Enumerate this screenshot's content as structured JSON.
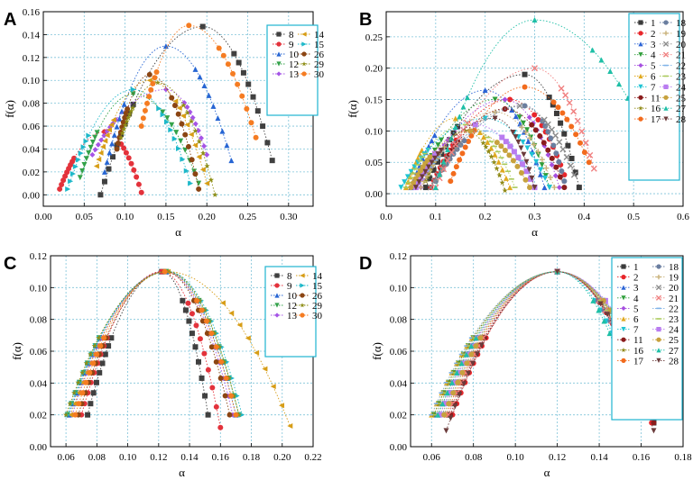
{
  "series_colors": {
    "1": "#3a3a3a",
    "2": "#e8262b",
    "3": "#2a63d6",
    "4": "#2f9e3a",
    "5": "#a64fe0",
    "6": "#e0a91f",
    "7": "#1fc4d4",
    "8": "#404040",
    "9": "#e3323b",
    "10": "#2665d3",
    "11": "#8a1c1c",
    "12": "#33a24a",
    "13": "#a554e6",
    "14": "#d79d16",
    "15": "#1db8c9",
    "16": "#8f8a17",
    "17": "#f26b1d",
    "18": "#6a7ea0",
    "19": "#c9b27a",
    "20": "#8c8c8c",
    "21": "#f08080",
    "22": "#7fb3e8",
    "23": "#a9c95a",
    "24": "#b97cf0",
    "25": "#c7a23e",
    "26": "#8b4513",
    "27": "#1ebfa6",
    "28": "#6b3b3b",
    "29": "#8e8e16",
    "30": "#f57c22"
  },
  "chart_data": [
    {
      "panel": "A",
      "type": "scatter",
      "xlabel": "α",
      "ylabel": "f(α)",
      "xlim": [
        0.0,
        0.33
      ],
      "ylim": [
        -0.01,
        0.16
      ],
      "xticks": [
        "0.00",
        "0.05",
        "0.10",
        "0.15",
        "0.20",
        "0.25",
        "0.30"
      ],
      "yticks": [
        "0.00",
        "0.02",
        "0.04",
        "0.06",
        "0.08",
        "0.10",
        "0.12",
        "0.14",
        "0.16"
      ],
      "legend_columns": [
        [
          "8",
          "9",
          "10",
          "12",
          "13"
        ],
        [
          "14",
          "15",
          "26",
          "29",
          "30"
        ]
      ],
      "series": [
        {
          "name": "8",
          "alpha_min": 0.07,
          "alpha_0": 0.195,
          "alpha_max": 0.28,
          "f_max": 0.147,
          "f_left_end": 0.0,
          "f_right_end": 0.03
        },
        {
          "name": "9",
          "alpha_min": 0.02,
          "alpha_0": 0.075,
          "alpha_max": 0.12,
          "f_max": 0.055,
          "f_left_end": 0.005,
          "f_right_end": 0.002
        },
        {
          "name": "10",
          "alpha_min": 0.075,
          "alpha_0": 0.15,
          "alpha_max": 0.23,
          "f_max": 0.13,
          "f_left_end": 0.02,
          "f_right_end": 0.03
        },
        {
          "name": "12",
          "alpha_min": 0.045,
          "alpha_0": 0.11,
          "alpha_max": 0.19,
          "f_max": 0.088,
          "f_left_end": 0.015,
          "f_right_end": 0.01
        },
        {
          "name": "13",
          "alpha_min": 0.06,
          "alpha_0": 0.15,
          "alpha_max": 0.2,
          "f_max": 0.092,
          "f_left_end": 0.035,
          "f_right_end": 0.035
        },
        {
          "name": "14",
          "alpha_min": 0.065,
          "alpha_0": 0.13,
          "alpha_max": 0.2,
          "f_max": 0.1,
          "f_left_end": 0.025,
          "f_right_end": 0.01
        },
        {
          "name": "15",
          "alpha_min": 0.03,
          "alpha_0": 0.11,
          "alpha_max": 0.18,
          "f_max": 0.092,
          "f_left_end": 0.005,
          "f_right_end": 0.01
        },
        {
          "name": "26",
          "alpha_min": 0.09,
          "alpha_0": 0.13,
          "alpha_max": 0.19,
          "f_max": 0.105,
          "f_left_end": 0.04,
          "f_right_end": 0.005
        },
        {
          "name": "29",
          "alpha_min": 0.095,
          "alpha_0": 0.14,
          "alpha_max": 0.21,
          "f_max": 0.098,
          "f_left_end": 0.05,
          "f_right_end": 0.0
        },
        {
          "name": "30",
          "alpha_min": 0.12,
          "alpha_0": 0.178,
          "alpha_max": 0.26,
          "f_max": 0.148,
          "f_left_end": 0.06,
          "f_right_end": 0.05
        }
      ]
    },
    {
      "panel": "B",
      "type": "scatter",
      "xlabel": "α",
      "ylabel": "f(α)",
      "xlim": [
        0.0,
        0.6
      ],
      "ylim": [
        -0.02,
        0.29
      ],
      "xticks": [
        "0.0",
        "0.1",
        "0.2",
        "0.3",
        "0.4",
        "0.5",
        "0.6"
      ],
      "yticks": [
        "0.00",
        "0.05",
        "0.10",
        "0.15",
        "0.20",
        "0.25"
      ],
      "legend_columns": [
        [
          "1",
          "2",
          "3",
          "4",
          "5",
          "6",
          "7",
          "11",
          "16",
          "17"
        ],
        [
          "18",
          "19",
          "20",
          "21",
          "22",
          "23",
          "24",
          "25",
          "27",
          "28"
        ]
      ],
      "series": [
        {
          "name": "1",
          "alpha_min": 0.08,
          "alpha_0": 0.28,
          "alpha_max": 0.39,
          "f_max": 0.19,
          "f_left_end": 0.01,
          "f_right_end": 0.01
        },
        {
          "name": "2",
          "alpha_min": 0.09,
          "alpha_0": 0.25,
          "alpha_max": 0.36,
          "f_max": 0.15,
          "f_left_end": 0.01,
          "f_right_end": 0.03
        },
        {
          "name": "3",
          "alpha_min": 0.05,
          "alpha_0": 0.2,
          "alpha_max": 0.32,
          "f_max": 0.165,
          "f_left_end": 0.01,
          "f_right_end": 0.01
        },
        {
          "name": "4",
          "alpha_min": 0.06,
          "alpha_0": 0.22,
          "alpha_max": 0.33,
          "f_max": 0.15,
          "f_left_end": 0.01,
          "f_right_end": 0.01
        },
        {
          "name": "5",
          "alpha_min": 0.07,
          "alpha_0": 0.24,
          "alpha_max": 0.35,
          "f_max": 0.15,
          "f_left_end": 0.01,
          "f_right_end": 0.01
        },
        {
          "name": "6",
          "alpha_min": 0.04,
          "alpha_0": 0.14,
          "alpha_max": 0.25,
          "f_max": 0.12,
          "f_left_end": 0.01,
          "f_right_end": 0.01
        },
        {
          "name": "7",
          "alpha_min": 0.03,
          "alpha_0": 0.2,
          "alpha_max": 0.33,
          "f_max": 0.12,
          "f_left_end": 0.01,
          "f_right_end": 0.01
        },
        {
          "name": "11",
          "alpha_min": 0.1,
          "alpha_0": 0.24,
          "alpha_max": 0.36,
          "f_max": 0.135,
          "f_left_end": 0.02,
          "f_right_end": 0.01
        },
        {
          "name": "16",
          "alpha_min": 0.08,
          "alpha_0": 0.16,
          "alpha_max": 0.24,
          "f_max": 0.1,
          "f_left_end": 0.02,
          "f_right_end": 0.005
        },
        {
          "name": "17",
          "alpha_min": 0.13,
          "alpha_0": 0.28,
          "alpha_max": 0.41,
          "f_max": 0.17,
          "f_left_end": 0.02,
          "f_right_end": 0.05
        },
        {
          "name": "18",
          "alpha_min": 0.1,
          "alpha_0": 0.28,
          "alpha_max": 0.36,
          "f_max": 0.14,
          "f_left_end": 0.02,
          "f_right_end": 0.02
        },
        {
          "name": "19",
          "alpha_min": 0.07,
          "alpha_0": 0.22,
          "alpha_max": 0.34,
          "f_max": 0.13,
          "f_left_end": 0.01,
          "f_right_end": 0.01
        },
        {
          "name": "20",
          "alpha_min": 0.09,
          "alpha_0": 0.27,
          "alpha_max": 0.38,
          "f_max": 0.14,
          "f_left_end": 0.01,
          "f_right_end": 0.03
        },
        {
          "name": "21",
          "alpha_min": 0.1,
          "alpha_0": 0.3,
          "alpha_max": 0.42,
          "f_max": 0.2,
          "f_left_end": 0.01,
          "f_right_end": 0.04
        },
        {
          "name": "22",
          "alpha_min": 0.06,
          "alpha_0": 0.2,
          "alpha_max": 0.3,
          "f_max": 0.1,
          "f_left_end": 0.01,
          "f_right_end": 0.01
        },
        {
          "name": "23",
          "alpha_min": 0.04,
          "alpha_0": 0.16,
          "alpha_max": 0.26,
          "f_max": 0.11,
          "f_left_end": 0.01,
          "f_right_end": 0.01
        },
        {
          "name": "24",
          "alpha_min": 0.06,
          "alpha_0": 0.18,
          "alpha_max": 0.3,
          "f_max": 0.11,
          "f_left_end": 0.01,
          "f_right_end": 0.01
        },
        {
          "name": "25",
          "alpha_min": 0.05,
          "alpha_0": 0.17,
          "alpha_max": 0.29,
          "f_max": 0.1,
          "f_left_end": 0.01,
          "f_right_end": 0.01
        },
        {
          "name": "27",
          "alpha_min": 0.1,
          "alpha_0": 0.3,
          "alpha_max": 0.56,
          "f_max": 0.277,
          "f_left_end": 0.01,
          "f_right_end": 0.04
        },
        {
          "name": "28",
          "alpha_min": 0.06,
          "alpha_0": 0.22,
          "alpha_max": 0.3,
          "f_max": 0.12,
          "f_left_end": 0.01,
          "f_right_end": 0.01
        }
      ]
    },
    {
      "panel": "C",
      "type": "scatter",
      "xlabel": "α",
      "ylabel": "f(α)",
      "xlim": [
        0.05,
        0.22
      ],
      "ylim": [
        0.0,
        0.12
      ],
      "xticks": [
        "0.06",
        "0.08",
        "0.10",
        "0.12",
        "0.14",
        "0.16",
        "0.18",
        "0.20",
        "0.22"
      ],
      "yticks": [
        "0.00",
        "0.02",
        "0.04",
        "0.06",
        "0.08",
        "0.10",
        "0.12"
      ],
      "legend_columns": [
        [
          "8",
          "9",
          "10",
          "12",
          "13"
        ],
        [
          "14",
          "15",
          "26",
          "29",
          "30"
        ]
      ],
      "series": [
        {
          "name": "8",
          "alpha_min": 0.074,
          "alpha_0": 0.122,
          "alpha_max": 0.152,
          "f_max": 0.11,
          "f_left_end": 0.02,
          "f_right_end": 0.02
        },
        {
          "name": "9",
          "alpha_min": 0.07,
          "alpha_0": 0.122,
          "alpha_max": 0.16,
          "f_max": 0.11,
          "f_left_end": 0.02,
          "f_right_end": 0.012
        },
        {
          "name": "10",
          "alpha_min": 0.062,
          "alpha_0": 0.125,
          "alpha_max": 0.17,
          "f_max": 0.11,
          "f_left_end": 0.02,
          "f_right_end": 0.02
        },
        {
          "name": "12",
          "alpha_min": 0.061,
          "alpha_0": 0.125,
          "alpha_max": 0.172,
          "f_max": 0.11,
          "f_left_end": 0.02,
          "f_right_end": 0.02
        },
        {
          "name": "13",
          "alpha_min": 0.064,
          "alpha_0": 0.124,
          "alpha_max": 0.168,
          "f_max": 0.11,
          "f_left_end": 0.02,
          "f_right_end": 0.02
        },
        {
          "name": "14",
          "alpha_min": 0.063,
          "alpha_0": 0.126,
          "alpha_max": 0.205,
          "f_max": 0.11,
          "f_left_end": 0.02,
          "f_right_end": 0.013
        },
        {
          "name": "15",
          "alpha_min": 0.061,
          "alpha_0": 0.126,
          "alpha_max": 0.174,
          "f_max": 0.11,
          "f_left_end": 0.02,
          "f_right_end": 0.02
        },
        {
          "name": "26",
          "alpha_min": 0.068,
          "alpha_0": 0.124,
          "alpha_max": 0.166,
          "f_max": 0.11,
          "f_left_end": 0.02,
          "f_right_end": 0.02
        },
        {
          "name": "29",
          "alpha_min": 0.06,
          "alpha_0": 0.126,
          "alpha_max": 0.172,
          "f_max": 0.11,
          "f_left_end": 0.02,
          "f_right_end": 0.02
        },
        {
          "name": "30",
          "alpha_min": 0.066,
          "alpha_0": 0.124,
          "alpha_max": 0.17,
          "f_max": 0.11,
          "f_left_end": 0.02,
          "f_right_end": 0.02
        }
      ]
    },
    {
      "panel": "D",
      "type": "scatter",
      "xlabel": "α",
      "ylabel": "f(α)",
      "xlim": [
        0.05,
        0.18
      ],
      "ylim": [
        0.0,
        0.12
      ],
      "xticks": [
        "0.06",
        "0.08",
        "0.10",
        "0.12",
        "0.14",
        "0.16",
        "0.18"
      ],
      "yticks": [
        "0.00",
        "0.02",
        "0.04",
        "0.06",
        "0.08",
        "0.10",
        "0.12"
      ],
      "legend_columns": [
        [
          "1",
          "2",
          "3",
          "4",
          "5",
          "6",
          "7",
          "11",
          "16",
          "17"
        ],
        [
          "18",
          "19",
          "20",
          "21",
          "22",
          "23",
          "24",
          "25",
          "27",
          "28"
        ]
      ],
      "series": [
        {
          "name": "1",
          "alpha_min": 0.068,
          "alpha_0": 0.12,
          "alpha_max": 0.166,
          "f_max": 0.11,
          "f_left_end": 0.02,
          "f_right_end": 0.015
        },
        {
          "name": "2",
          "alpha_min": 0.07,
          "alpha_0": 0.12,
          "alpha_max": 0.165,
          "f_max": 0.11,
          "f_left_end": 0.02,
          "f_right_end": 0.015
        },
        {
          "name": "3",
          "alpha_min": 0.062,
          "alpha_0": 0.12,
          "alpha_max": 0.168,
          "f_max": 0.11,
          "f_left_end": 0.02,
          "f_right_end": 0.02
        },
        {
          "name": "4",
          "alpha_min": 0.061,
          "alpha_0": 0.12,
          "alpha_max": 0.169,
          "f_max": 0.11,
          "f_left_end": 0.02,
          "f_right_end": 0.02
        },
        {
          "name": "5",
          "alpha_min": 0.063,
          "alpha_0": 0.12,
          "alpha_max": 0.17,
          "f_max": 0.11,
          "f_left_end": 0.02,
          "f_right_end": 0.02
        },
        {
          "name": "6",
          "alpha_min": 0.06,
          "alpha_0": 0.12,
          "alpha_max": 0.168,
          "f_max": 0.11,
          "f_left_end": 0.02,
          "f_right_end": 0.02
        },
        {
          "name": "7",
          "alpha_min": 0.066,
          "alpha_0": 0.12,
          "alpha_max": 0.16,
          "f_max": 0.11,
          "f_left_end": 0.02,
          "f_right_end": 0.02
        },
        {
          "name": "11",
          "alpha_min": 0.069,
          "alpha_0": 0.12,
          "alpha_max": 0.166,
          "f_max": 0.11,
          "f_left_end": 0.02,
          "f_right_end": 0.015
        },
        {
          "name": "16",
          "alpha_min": 0.061,
          "alpha_0": 0.12,
          "alpha_max": 0.167,
          "f_max": 0.11,
          "f_left_end": 0.02,
          "f_right_end": 0.02
        },
        {
          "name": "17",
          "alpha_min": 0.067,
          "alpha_0": 0.12,
          "alpha_max": 0.165,
          "f_max": 0.11,
          "f_left_end": 0.02,
          "f_right_end": 0.02
        },
        {
          "name": "18",
          "alpha_min": 0.064,
          "alpha_0": 0.12,
          "alpha_max": 0.163,
          "f_max": 0.11,
          "f_left_end": 0.02,
          "f_right_end": 0.02
        },
        {
          "name": "19",
          "alpha_min": 0.063,
          "alpha_0": 0.12,
          "alpha_max": 0.168,
          "f_max": 0.11,
          "f_left_end": 0.02,
          "f_right_end": 0.02
        },
        {
          "name": "20",
          "alpha_min": 0.065,
          "alpha_0": 0.12,
          "alpha_max": 0.167,
          "f_max": 0.11,
          "f_left_end": 0.02,
          "f_right_end": 0.02
        },
        {
          "name": "21",
          "alpha_min": 0.068,
          "alpha_0": 0.12,
          "alpha_max": 0.164,
          "f_max": 0.11,
          "f_left_end": 0.02,
          "f_right_end": 0.02
        },
        {
          "name": "22",
          "alpha_min": 0.06,
          "alpha_0": 0.12,
          "alpha_max": 0.17,
          "f_max": 0.11,
          "f_left_end": 0.02,
          "f_right_end": 0.02
        },
        {
          "name": "23",
          "alpha_min": 0.062,
          "alpha_0": 0.12,
          "alpha_max": 0.166,
          "f_max": 0.11,
          "f_left_end": 0.02,
          "f_right_end": 0.02
        },
        {
          "name": "24",
          "alpha_min": 0.064,
          "alpha_0": 0.12,
          "alpha_max": 0.171,
          "f_max": 0.11,
          "f_left_end": 0.02,
          "f_right_end": 0.02
        },
        {
          "name": "25",
          "alpha_min": 0.066,
          "alpha_0": 0.12,
          "alpha_max": 0.169,
          "f_max": 0.11,
          "f_left_end": 0.02,
          "f_right_end": 0.02
        },
        {
          "name": "27",
          "alpha_min": 0.063,
          "alpha_0": 0.12,
          "alpha_max": 0.158,
          "f_max": 0.11,
          "f_left_end": 0.02,
          "f_right_end": 0.02
        },
        {
          "name": "28",
          "alpha_min": 0.067,
          "alpha_0": 0.12,
          "alpha_max": 0.166,
          "f_max": 0.11,
          "f_left_end": 0.01,
          "f_right_end": 0.01
        }
      ]
    }
  ]
}
